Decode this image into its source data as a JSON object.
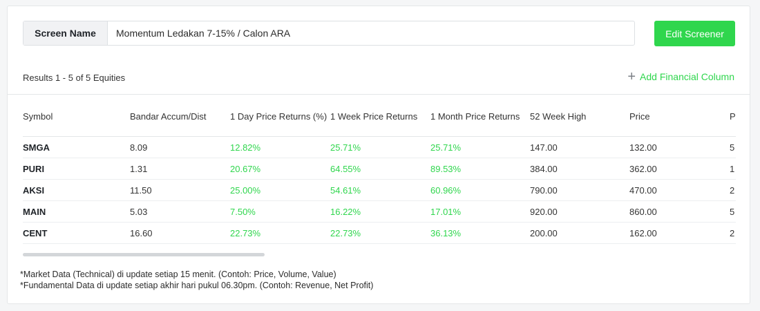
{
  "screen": {
    "label": "Screen Name",
    "value": "Momentum Ledakan 7-15% / Calon ARA",
    "edit_button": "Edit Screener"
  },
  "results": {
    "summary": "Results 1 - 5 of 5 Equities",
    "add_column_label": "Add Financial Column",
    "add_column_icon": "plus-icon"
  },
  "table": {
    "headers": [
      "Symbol",
      "Bandar Accum/Dist",
      "1 Day Price Returns (%)",
      "1 Week Price Returns",
      "1 Month Price Returns",
      "52 Week High",
      "Price",
      "P"
    ],
    "rows": [
      [
        "SMGA",
        "8.09",
        "12.82%",
        "25.71%",
        "25.71%",
        "147.00",
        "132.00",
        "5"
      ],
      [
        "PURI",
        "1.31",
        "20.67%",
        "64.55%",
        "89.53%",
        "384.00",
        "362.00",
        "1"
      ],
      [
        "AKSI",
        "11.50",
        "25.00%",
        "54.61%",
        "60.96%",
        "790.00",
        "470.00",
        "2"
      ],
      [
        "MAIN",
        "5.03",
        "7.50%",
        "16.22%",
        "17.01%",
        "920.00",
        "860.00",
        "5"
      ],
      [
        "CENT",
        "16.60",
        "22.73%",
        "22.73%",
        "36.13%",
        "200.00",
        "162.00",
        "2"
      ]
    ]
  },
  "footnotes": {
    "line1": "*Market Data (Technical) di update setiap 15 menit. (Contoh: Price, Volume, Value)",
    "line2": "*Fundamental Data di update setiap akhir hari pukul 06.30pm. (Contoh: Revenue, Net Profit)"
  },
  "colors": {
    "accent_green": "#2fd64d",
    "border": "#e4e6e8"
  }
}
